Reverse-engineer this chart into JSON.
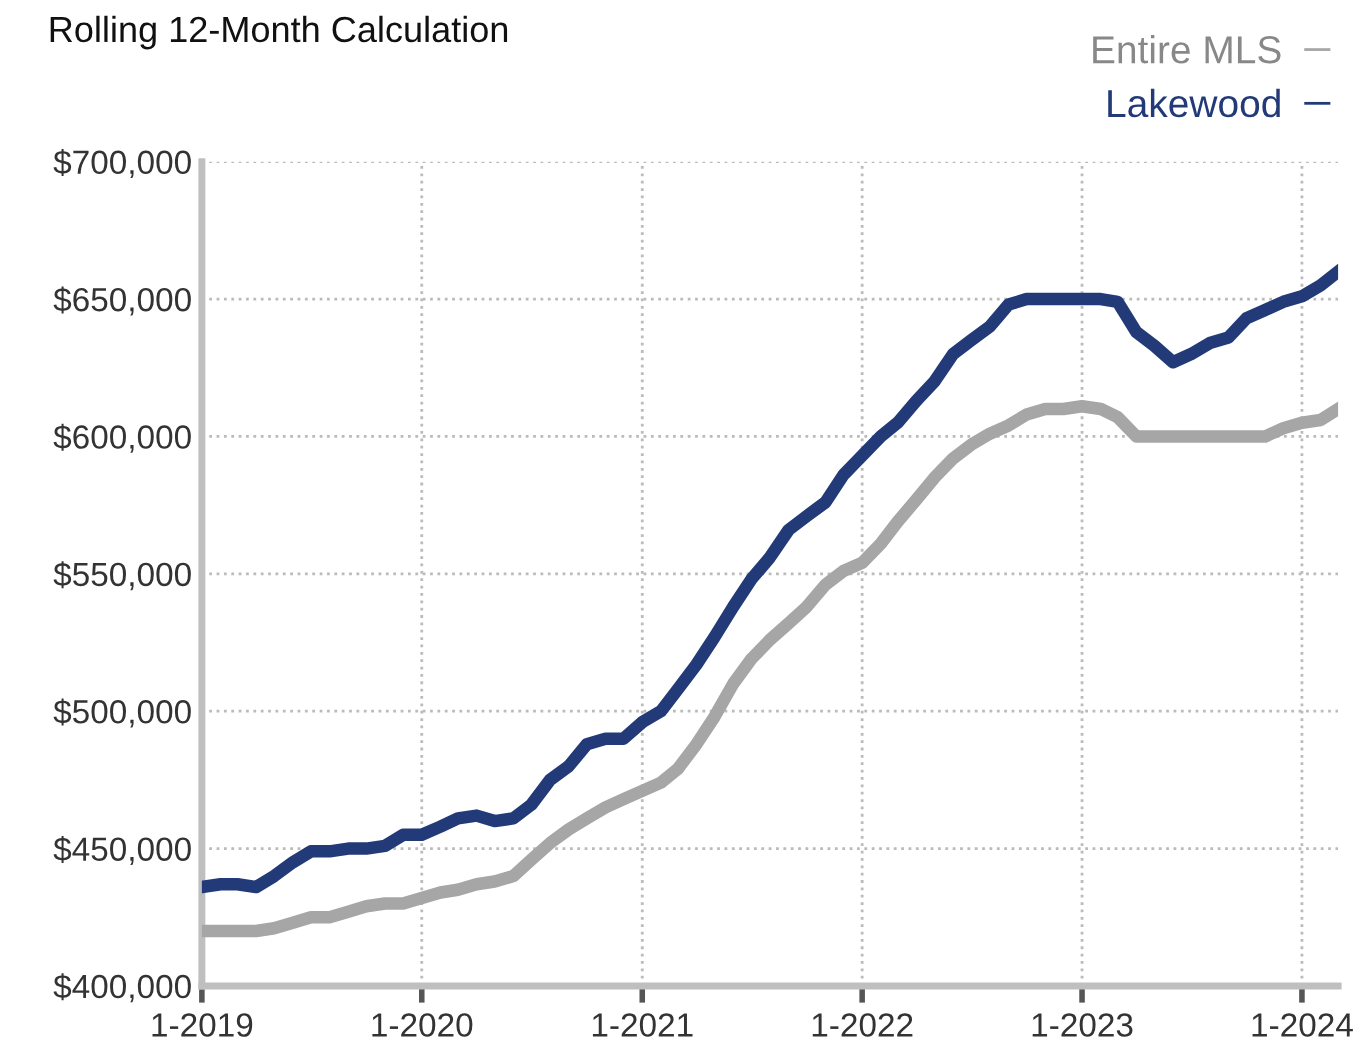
{
  "chart_data": {
    "type": "line",
    "title": "Rolling 12-Month Calculation",
    "x": [
      "2019-01",
      "2019-02",
      "2019-03",
      "2019-04",
      "2019-05",
      "2019-06",
      "2019-07",
      "2019-08",
      "2019-09",
      "2019-10",
      "2019-11",
      "2019-12",
      "2020-01",
      "2020-02",
      "2020-03",
      "2020-04",
      "2020-05",
      "2020-06",
      "2020-07",
      "2020-08",
      "2020-09",
      "2020-10",
      "2020-11",
      "2020-12",
      "2021-01",
      "2021-02",
      "2021-03",
      "2021-04",
      "2021-05",
      "2021-06",
      "2021-07",
      "2021-08",
      "2021-09",
      "2021-10",
      "2021-11",
      "2021-12",
      "2022-01",
      "2022-02",
      "2022-03",
      "2022-04",
      "2022-05",
      "2022-06",
      "2022-07",
      "2022-08",
      "2022-09",
      "2022-10",
      "2022-11",
      "2022-12",
      "2023-01",
      "2023-02",
      "2023-03",
      "2023-04",
      "2023-05",
      "2023-06",
      "2023-07",
      "2023-08",
      "2023-09",
      "2023-10",
      "2023-11",
      "2023-12",
      "2024-01",
      "2024-02",
      "2024-03"
    ],
    "series": [
      {
        "name": "Entire MLS",
        "color": "#a6a6a6",
        "values": [
          420000,
          420000,
          420000,
          420000,
          421000,
          423000,
          425000,
          425000,
          427000,
          429000,
          430000,
          430000,
          432000,
          434000,
          435000,
          437000,
          438000,
          440000,
          446000,
          452000,
          457000,
          461000,
          465000,
          468000,
          471000,
          474000,
          479000,
          488000,
          498000,
          510000,
          519000,
          526000,
          532000,
          538000,
          546000,
          551000,
          554000,
          561000,
          569000,
          577000,
          585000,
          592000,
          597000,
          601000,
          604000,
          608000,
          610000,
          610000,
          611000,
          610000,
          607000,
          600000,
          600000,
          600000,
          600000,
          600000,
          600000,
          600000,
          600000,
          603000,
          605000,
          606000,
          610000
        ]
      },
      {
        "name": "Lakewood",
        "color": "#233a78",
        "values": [
          436000,
          437000,
          437000,
          436000,
          440000,
          445000,
          449000,
          449000,
          450000,
          450000,
          451000,
          455000,
          455000,
          458000,
          461000,
          462000,
          460000,
          461000,
          466000,
          475000,
          480000,
          488000,
          490000,
          490000,
          496000,
          500000,
          508000,
          517000,
          527000,
          538000,
          548000,
          556000,
          566000,
          571000,
          576000,
          586000,
          593000,
          600000,
          605000,
          613000,
          620000,
          630000,
          635000,
          640000,
          648000,
          650000,
          650000,
          650000,
          650000,
          650000,
          649000,
          638000,
          633000,
          627000,
          630000,
          634000,
          636000,
          643000,
          646000,
          649000,
          651000,
          655000,
          660000
        ]
      }
    ],
    "xlim": [
      "2019-01",
      "2024-03"
    ],
    "xticks": [
      {
        "value": "2019-01",
        "label": "1-2019"
      },
      {
        "value": "2020-01",
        "label": "1-2020"
      },
      {
        "value": "2021-01",
        "label": "1-2021"
      },
      {
        "value": "2022-01",
        "label": "1-2022"
      },
      {
        "value": "2023-01",
        "label": "1-2023"
      },
      {
        "value": "2024-01",
        "label": "1-2024"
      }
    ],
    "ylim": [
      400000,
      700000
    ],
    "yticks": [
      {
        "value": 400000,
        "label": "$400,000"
      },
      {
        "value": 450000,
        "label": "$450,000"
      },
      {
        "value": 500000,
        "label": "$500,000"
      },
      {
        "value": 550000,
        "label": "$550,000"
      },
      {
        "value": 600000,
        "label": "$600,000"
      },
      {
        "value": 650000,
        "label": "$650,000"
      },
      {
        "value": 700000,
        "label": "$700,000"
      }
    ],
    "grid": true,
    "legend": "top right",
    "marker": "none",
    "line_style": "solid"
  }
}
